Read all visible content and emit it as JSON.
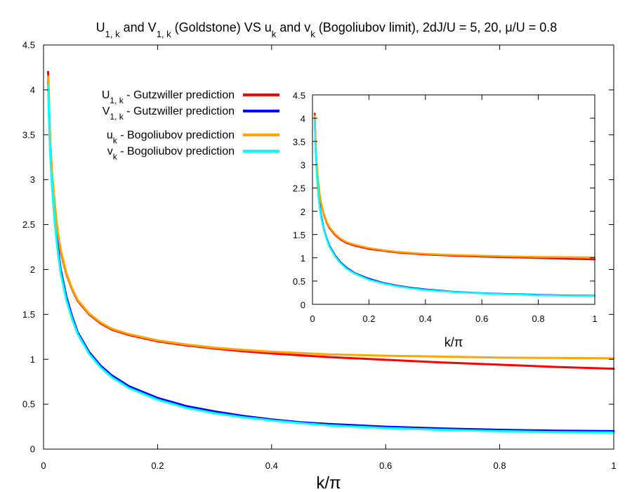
{
  "chart_data": [
    {
      "type": "line",
      "title_parts": [
        {
          "t": "U"
        },
        {
          "t": "1, k",
          "sub": true
        },
        {
          "t": " and V"
        },
        {
          "t": "1, k",
          "sub": true
        },
        {
          "t": " (Goldstone) VS u"
        },
        {
          "t": "k",
          "sub": true
        },
        {
          "t": " and v"
        },
        {
          "t": "k",
          "sub": true
        },
        {
          "t": " (Bogoliubov limit), 2dJ/U = 5, 20, μ/U = 0.8"
        }
      ],
      "xlabel": "k/π",
      "ylabel": "",
      "xlim": [
        0,
        1
      ],
      "ylim": [
        0,
        4.5
      ],
      "xticks": [
        0,
        0.2,
        0.4,
        0.6,
        0.8,
        1
      ],
      "xtick_labels": [
        "0",
        "0.2",
        "0.4",
        "0.6",
        "0.8",
        "1"
      ],
      "yticks": [
        0,
        0.5,
        1,
        1.5,
        2,
        2.5,
        3,
        3.5,
        4,
        4.5
      ],
      "ytick_labels": [
        "0",
        "0.5",
        "1",
        "1.5",
        "2",
        "2.5",
        "3",
        "3.5",
        "4",
        "4.5"
      ],
      "grid": false,
      "legend_position": "top-center",
      "series": [
        {
          "name": "U1k-gutzwiller",
          "label_parts": [
            {
              "t": "U"
            },
            {
              "t": "1, k",
              "sub": true
            },
            {
              "t": " - Gutzwiller prediction"
            }
          ],
          "color": "#ff0000",
          "x": [
            0.008,
            0.01,
            0.012,
            0.015,
            0.02,
            0.025,
            0.03,
            0.04,
            0.05,
            0.06,
            0.08,
            0.1,
            0.12,
            0.15,
            0.2,
            0.25,
            0.3,
            0.35,
            0.4,
            0.45,
            0.5,
            0.6,
            0.7,
            0.8,
            0.9,
            1.0
          ],
          "y": [
            4.2,
            3.75,
            3.4,
            3.05,
            2.7,
            2.4,
            2.2,
            1.95,
            1.78,
            1.65,
            1.5,
            1.4,
            1.33,
            1.27,
            1.2,
            1.155,
            1.12,
            1.09,
            1.065,
            1.045,
            1.025,
            0.995,
            0.965,
            0.94,
            0.915,
            0.895
          ]
        },
        {
          "name": "V1k-gutzwiller",
          "label_parts": [
            {
              "t": "V"
            },
            {
              "t": "1, k",
              "sub": true
            },
            {
              "t": " - Gutzwiller prediction"
            }
          ],
          "color": "#0000ff",
          "x": [
            0.008,
            0.01,
            0.012,
            0.015,
            0.02,
            0.025,
            0.03,
            0.04,
            0.05,
            0.06,
            0.08,
            0.1,
            0.12,
            0.15,
            0.2,
            0.25,
            0.3,
            0.35,
            0.4,
            0.45,
            0.5,
            0.6,
            0.7,
            0.8,
            0.9,
            1.0
          ],
          "y": [
            4.1,
            3.65,
            3.3,
            2.95,
            2.55,
            2.25,
            2.0,
            1.7,
            1.48,
            1.3,
            1.08,
            0.93,
            0.82,
            0.7,
            0.57,
            0.48,
            0.42,
            0.37,
            0.33,
            0.3,
            0.28,
            0.25,
            0.23,
            0.215,
            0.205,
            0.2
          ]
        },
        {
          "name": "uk-bogoliubov",
          "label_parts": [
            {
              "t": "u"
            },
            {
              "t": "k",
              "sub": true
            },
            {
              "t": " - Bogoliubov prediction"
            }
          ],
          "color": "#ffa500",
          "x": [
            0.008,
            0.01,
            0.012,
            0.015,
            0.02,
            0.025,
            0.03,
            0.04,
            0.05,
            0.06,
            0.08,
            0.1,
            0.12,
            0.15,
            0.2,
            0.25,
            0.3,
            0.35,
            0.4,
            0.45,
            0.5,
            0.6,
            0.7,
            0.8,
            0.9,
            1.0
          ],
          "y": [
            4.15,
            3.75,
            3.42,
            3.06,
            2.7,
            2.42,
            2.22,
            1.96,
            1.79,
            1.66,
            1.51,
            1.41,
            1.34,
            1.28,
            1.21,
            1.165,
            1.13,
            1.105,
            1.085,
            1.07,
            1.055,
            1.04,
            1.03,
            1.02,
            1.015,
            1.01
          ]
        },
        {
          "name": "vk-bogoliubov",
          "label_parts": [
            {
              "t": "v"
            },
            {
              "t": "k",
              "sub": true
            },
            {
              "t": " - Bogoliubov prediction"
            }
          ],
          "color": "#00ffff",
          "x": [
            0.008,
            0.01,
            0.012,
            0.015,
            0.02,
            0.025,
            0.03,
            0.04,
            0.05,
            0.06,
            0.08,
            0.1,
            0.12,
            0.15,
            0.2,
            0.25,
            0.3,
            0.35,
            0.4,
            0.45,
            0.5,
            0.6,
            0.7,
            0.8,
            0.9,
            1.0
          ],
          "y": [
            4.05,
            3.6,
            3.25,
            2.9,
            2.5,
            2.2,
            1.96,
            1.66,
            1.45,
            1.28,
            1.06,
            0.91,
            0.8,
            0.68,
            0.55,
            0.46,
            0.4,
            0.355,
            0.32,
            0.29,
            0.265,
            0.235,
            0.215,
            0.2,
            0.19,
            0.185
          ]
        }
      ]
    },
    {
      "type": "line",
      "role": "inset",
      "xlabel": "k/π",
      "ylabel": "",
      "xlim": [
        0,
        1
      ],
      "ylim": [
        0,
        4.5
      ],
      "xticks": [
        0,
        0.2,
        0.4,
        0.6,
        0.8,
        1
      ],
      "xtick_labels": [
        "0",
        "0.2",
        "0.4",
        "0.6",
        "0.8",
        "1"
      ],
      "yticks": [
        0,
        0.5,
        1,
        1.5,
        2,
        2.5,
        3,
        3.5,
        4,
        4.5
      ],
      "ytick_labels": [
        "0",
        "0.5",
        "1",
        "1.5",
        "2",
        "2.5",
        "3",
        "3.5",
        "4",
        "4.5"
      ],
      "grid": false,
      "series": [
        {
          "name": "U1k-gutzwiller",
          "color": "#ff0000",
          "x": [
            0.008,
            0.01,
            0.012,
            0.015,
            0.02,
            0.025,
            0.03,
            0.04,
            0.05,
            0.06,
            0.08,
            0.1,
            0.12,
            0.15,
            0.2,
            0.25,
            0.3,
            0.35,
            0.4,
            0.5,
            0.6,
            0.7,
            0.8,
            0.9,
            1.0
          ],
          "y": [
            4.1,
            3.7,
            3.35,
            3.0,
            2.65,
            2.37,
            2.18,
            1.93,
            1.76,
            1.64,
            1.49,
            1.39,
            1.32,
            1.26,
            1.19,
            1.15,
            1.115,
            1.09,
            1.07,
            1.045,
            1.025,
            1.01,
            0.995,
            0.98,
            0.965
          ]
        },
        {
          "name": "V1k-gutzwiller",
          "color": "#0000ff",
          "x": [
            0.008,
            0.01,
            0.012,
            0.015,
            0.02,
            0.025,
            0.03,
            0.04,
            0.05,
            0.06,
            0.08,
            0.1,
            0.12,
            0.15,
            0.2,
            0.25,
            0.3,
            0.35,
            0.4,
            0.5,
            0.6,
            0.7,
            0.8,
            0.9,
            1.0
          ],
          "y": [
            4.0,
            3.55,
            3.2,
            2.85,
            2.45,
            2.15,
            1.92,
            1.62,
            1.42,
            1.26,
            1.05,
            0.9,
            0.79,
            0.67,
            0.55,
            0.46,
            0.4,
            0.355,
            0.32,
            0.27,
            0.24,
            0.22,
            0.205,
            0.19,
            0.185
          ]
        },
        {
          "name": "uk-bogoliubov",
          "color": "#ffa500",
          "x": [
            0.008,
            0.01,
            0.012,
            0.015,
            0.02,
            0.025,
            0.03,
            0.04,
            0.05,
            0.06,
            0.08,
            0.1,
            0.12,
            0.15,
            0.2,
            0.25,
            0.3,
            0.35,
            0.4,
            0.5,
            0.6,
            0.7,
            0.8,
            0.9,
            1.0
          ],
          "y": [
            4.05,
            3.7,
            3.37,
            3.02,
            2.67,
            2.39,
            2.2,
            1.95,
            1.78,
            1.66,
            1.51,
            1.41,
            1.34,
            1.28,
            1.21,
            1.165,
            1.13,
            1.105,
            1.085,
            1.06,
            1.045,
            1.03,
            1.02,
            1.015,
            1.01
          ]
        },
        {
          "name": "vk-bogoliubov",
          "color": "#00ffff",
          "x": [
            0.008,
            0.01,
            0.012,
            0.015,
            0.02,
            0.025,
            0.03,
            0.04,
            0.05,
            0.06,
            0.08,
            0.1,
            0.12,
            0.15,
            0.2,
            0.25,
            0.3,
            0.35,
            0.4,
            0.5,
            0.6,
            0.7,
            0.8,
            0.9,
            1.0
          ],
          "y": [
            3.95,
            3.5,
            3.15,
            2.8,
            2.4,
            2.1,
            1.88,
            1.6,
            1.4,
            1.24,
            1.03,
            0.88,
            0.77,
            0.66,
            0.53,
            0.45,
            0.39,
            0.345,
            0.31,
            0.265,
            0.235,
            0.215,
            0.2,
            0.185,
            0.18
          ]
        }
      ]
    }
  ]
}
